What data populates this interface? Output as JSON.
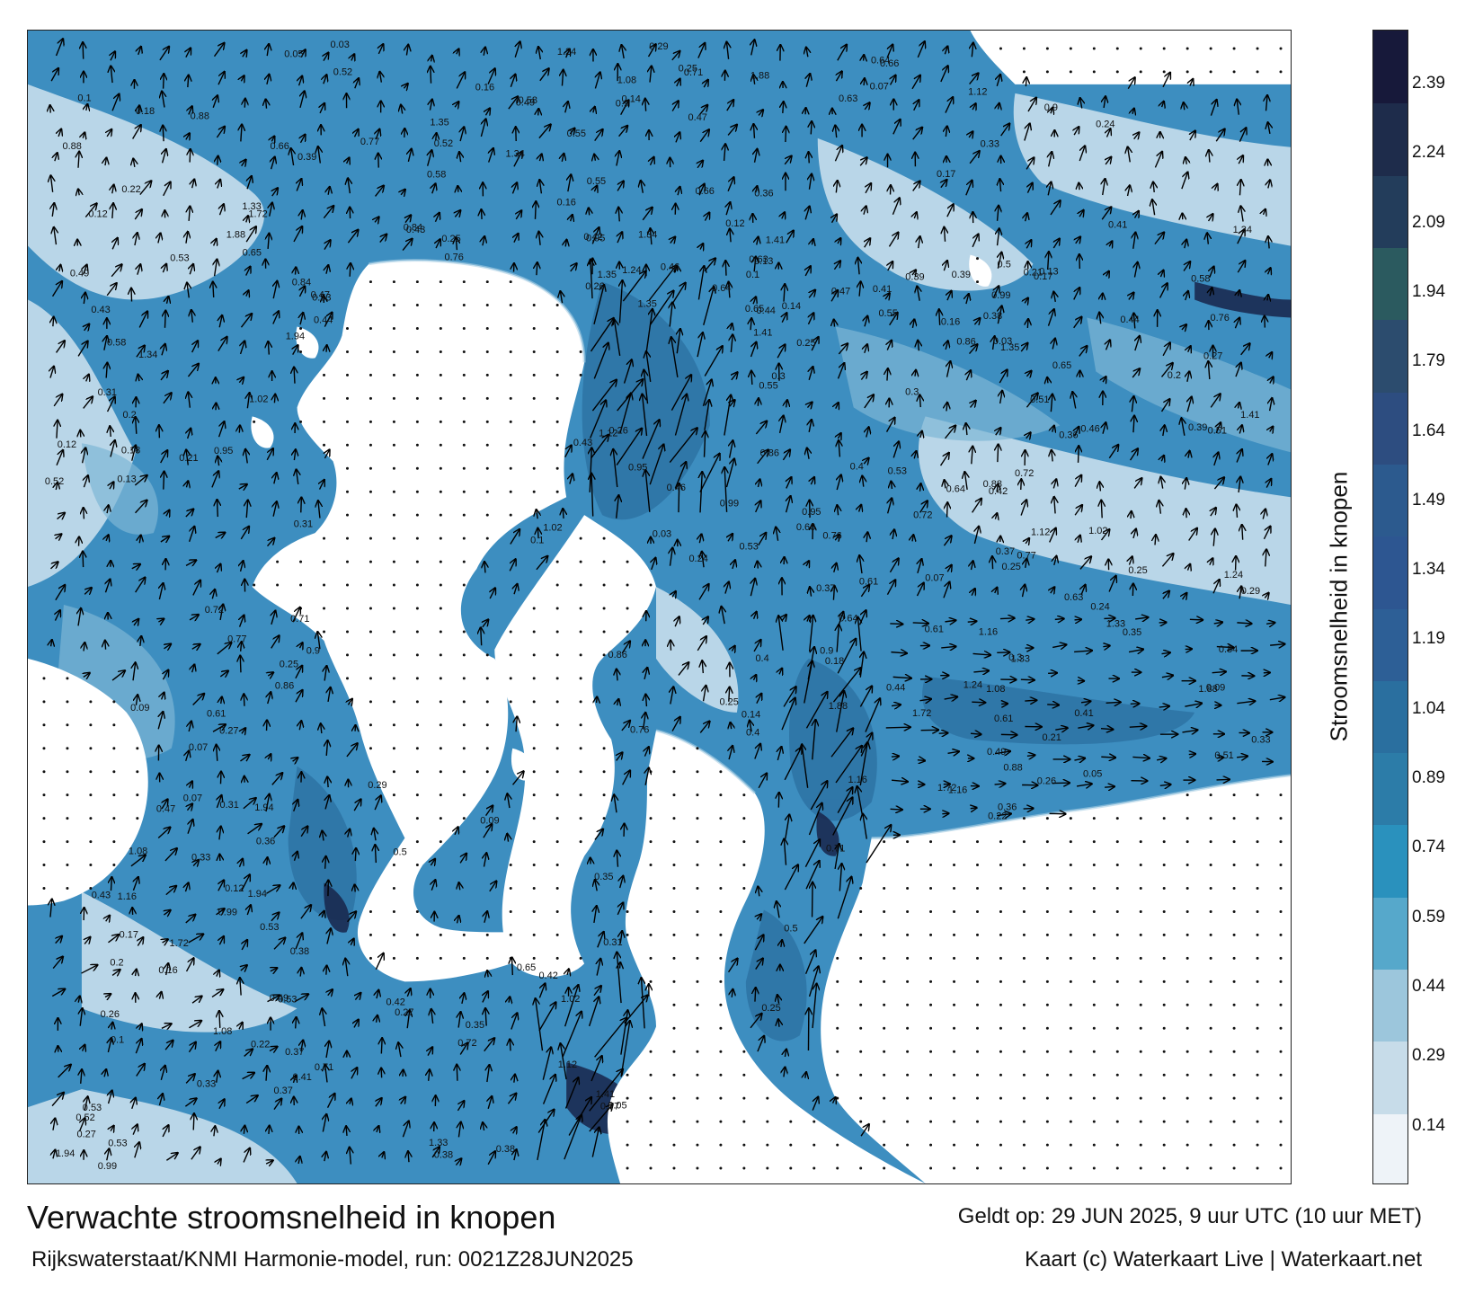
{
  "title": "Verwachte stroomsnelheid in knopen",
  "subtitle": "Rijkswaterstaat/KNMI Harmonie-model, run: 0021Z28JUN2025",
  "valid_time": "Geldt op: 29 JUN 2025, 9 uur UTC (10 uur MET)",
  "credit": "Kaart (c) Waterkaart Live | Waterkaart.net",
  "legend": {
    "title": "Stroomsnelheid in knopen",
    "ticks": [
      "2.39",
      "2.24",
      "2.09",
      "1.94",
      "1.79",
      "1.64",
      "1.49",
      "1.34",
      "1.19",
      "1.04",
      "0.89",
      "0.74",
      "0.59",
      "0.44",
      "0.29",
      "0.14"
    ],
    "colors": [
      "#eef3f8",
      "#c7dce9",
      "#9cc6dc",
      "#56a8cb",
      "#2a91bd",
      "#2c7ca8",
      "#2a6f9f",
      "#2d5f96",
      "#2d5691",
      "#2c5a8e",
      "#2d4d80",
      "#2c4c6e",
      "#2b5a5f",
      "#233d5b",
      "#1e2c4b",
      "#17193a"
    ]
  },
  "map": {
    "water_color": "#3d8ec0",
    "land_color": "#ffffff",
    "arrow_color": "#000000"
  },
  "labels": [
    {
      "t": "0.12"
    },
    {
      "t": "0.27"
    },
    {
      "t": "0.26"
    },
    {
      "t": "0.33"
    },
    {
      "t": "0.25"
    },
    {
      "t": "0.16"
    },
    {
      "t": "0.1"
    },
    {
      "t": "0.41"
    },
    {
      "t": "0.53"
    },
    {
      "t": "0.38"
    },
    {
      "t": "0.42"
    },
    {
      "t": "0.31"
    },
    {
      "t": "0.25"
    },
    {
      "t": "0.49"
    },
    {
      "t": "0.07"
    },
    {
      "t": "0.37"
    },
    {
      "t": "0.36"
    },
    {
      "t": "0.39"
    },
    {
      "t": "0.44"
    },
    {
      "t": "0.47"
    },
    {
      "t": "0.55"
    },
    {
      "t": "0.66"
    },
    {
      "t": "0.77"
    },
    {
      "t": "0.99"
    },
    {
      "t": "1.16"
    },
    {
      "t": "1.02"
    },
    {
      "t": "0.9"
    },
    {
      "t": "0.71"
    },
    {
      "t": "0.58"
    },
    {
      "t": "0.52"
    },
    {
      "t": "0.64"
    },
    {
      "t": "0.88"
    },
    {
      "t": "0.72"
    },
    {
      "t": "0.53"
    },
    {
      "t": "0.61"
    },
    {
      "t": "1.08"
    },
    {
      "t": "1.34"
    },
    {
      "t": "1.41"
    },
    {
      "t": "1.24"
    },
    {
      "t": "0.95"
    },
    {
      "t": "0.76"
    },
    {
      "t": "1.33"
    },
    {
      "t": "1.88"
    },
    {
      "t": "1.94"
    },
    {
      "t": "1.72"
    },
    {
      "t": "1.35"
    },
    {
      "t": "1.12"
    },
    {
      "t": "0.86"
    },
    {
      "t": "0.65"
    },
    {
      "t": "0.43"
    },
    {
      "t": "0.22"
    },
    {
      "t": "0.18"
    },
    {
      "t": "0.14"
    },
    {
      "t": "0.09"
    },
    {
      "t": "0.05"
    },
    {
      "t": "0.03"
    },
    {
      "t": "0.29"
    },
    {
      "t": "0.24"
    },
    {
      "t": "0.35"
    },
    {
      "t": "0.46"
    },
    {
      "t": "0.51"
    },
    {
      "t": "0.63"
    },
    {
      "t": "0.84"
    },
    {
      "t": "0.2"
    },
    {
      "t": "0.13"
    },
    {
      "t": "0.17"
    },
    {
      "t": "0.21"
    },
    {
      "t": "0.3"
    },
    {
      "t": "0.4"
    },
    {
      "t": "0.5"
    }
  ]
}
